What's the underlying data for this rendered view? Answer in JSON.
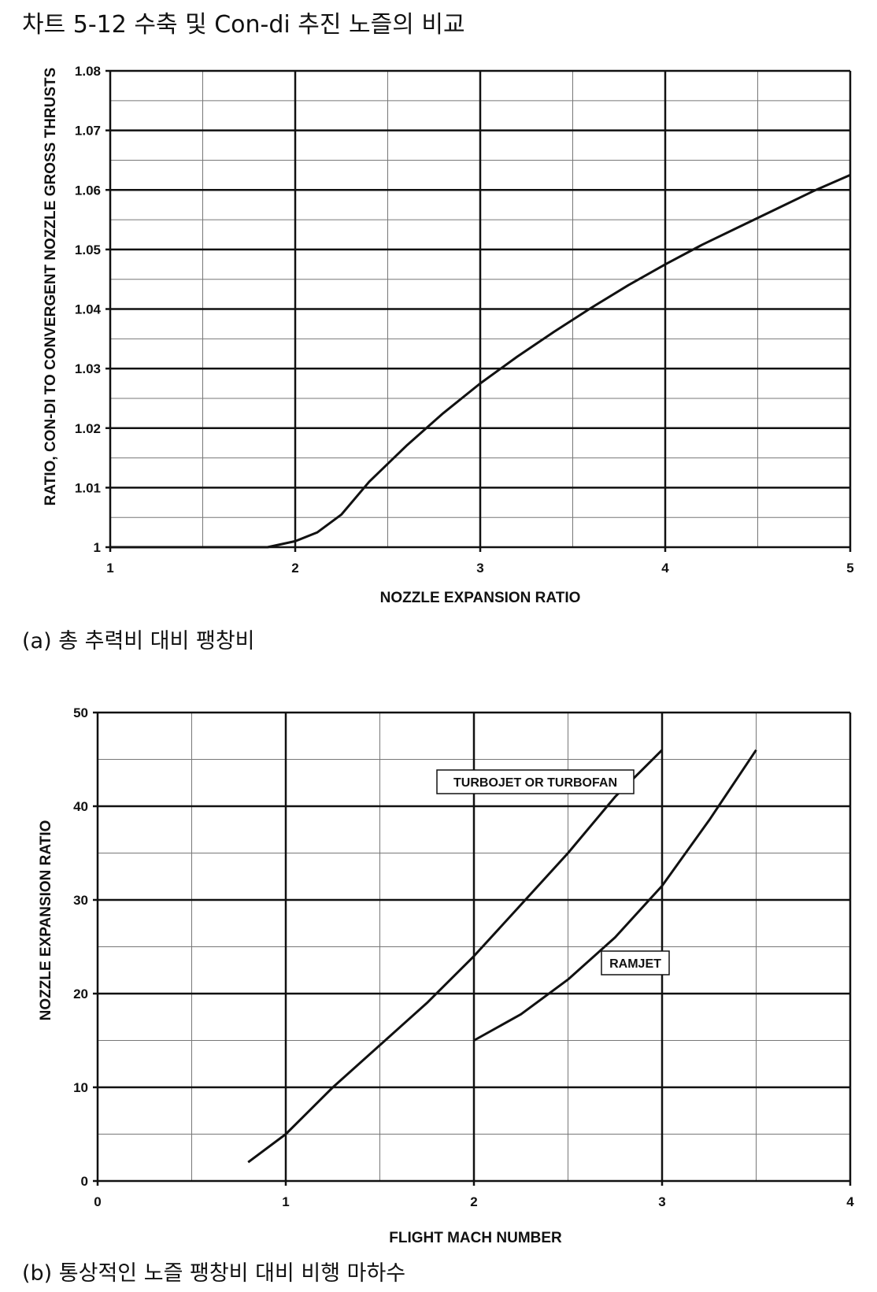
{
  "page_title": "차트 5-12 수축 및 Con-di 추진 노즐의 비교",
  "captions": {
    "a": "(a) 총 추력비 대비 팽창비",
    "b": "(b) 통상적인 노즐 팽창비 대비 비행 마하수"
  },
  "chart_data": [
    {
      "id": "a",
      "type": "line",
      "title": "",
      "xlabel": "NOZZLE EXPANSION RATIO",
      "ylabel": "RATIO, CON-DI TO CONVERGENT NOZZLE GROSS THRUSTS",
      "xlim": [
        1,
        5
      ],
      "ylim": [
        1,
        1.08
      ],
      "grid": true,
      "x_ticks": [
        "1",
        "2",
        "3",
        "4",
        "5"
      ],
      "y_ticks": [
        "1",
        "1.01",
        "1.02",
        "1.03",
        "1.04",
        "1.05",
        "1.06",
        "1.07",
        "1.08"
      ],
      "series": [
        {
          "name": "Con-di / convergent gross thrust ratio",
          "x": [
            1.0,
            1.85,
            2.0,
            2.12,
            2.25,
            2.4,
            2.6,
            2.8,
            3.0,
            3.2,
            3.4,
            3.6,
            3.8,
            4.0,
            4.2,
            4.4,
            4.6,
            4.8,
            5.0
          ],
          "y": [
            1.0,
            1.0,
            1.001,
            1.0025,
            1.0055,
            1.011,
            1.017,
            1.0225,
            1.0275,
            1.032,
            1.0362,
            1.0402,
            1.044,
            1.0475,
            1.0508,
            1.0538,
            1.0568,
            1.0598,
            1.0625
          ]
        }
      ]
    },
    {
      "id": "b",
      "type": "line",
      "title": "",
      "xlabel": "FLIGHT MACH NUMBER",
      "ylabel": "NOZZLE EXPANSION RATIO",
      "xlim": [
        0,
        4
      ],
      "ylim": [
        0,
        50
      ],
      "grid": true,
      "x_ticks": [
        "0",
        "1",
        "2",
        "3",
        "4"
      ],
      "y_ticks": [
        "0",
        "10",
        "20",
        "30",
        "40",
        "50"
      ],
      "series": [
        {
          "name": "TURBOJET OR TURBOFAN",
          "x": [
            0.8,
            1.0,
            1.25,
            1.5,
            1.75,
            2.0,
            2.25,
            2.5,
            2.75,
            3.0
          ],
          "y": [
            2,
            5,
            10,
            14.5,
            19,
            24,
            29.5,
            35,
            41,
            46
          ]
        },
        {
          "name": "RAMJET",
          "x": [
            2.0,
            2.25,
            2.5,
            2.75,
            3.0,
            3.25,
            3.5
          ],
          "y": [
            15,
            17.8,
            21.5,
            26,
            31.5,
            38.5,
            46
          ]
        }
      ],
      "annotations": [
        "TURBOJET OR TURBOFAN",
        "RAMJET"
      ]
    }
  ]
}
